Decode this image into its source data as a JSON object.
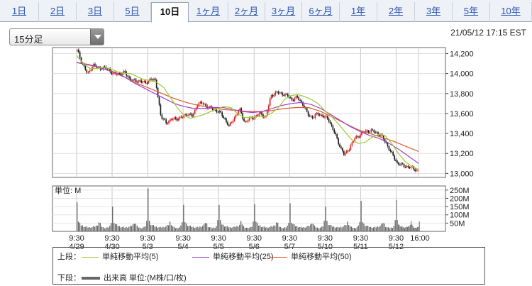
{
  "tabs": [
    {
      "label": "1日",
      "active": false
    },
    {
      "label": "2日",
      "active": false
    },
    {
      "label": "3日",
      "active": false
    },
    {
      "label": "5日",
      "active": false
    },
    {
      "label": "10日",
      "active": true
    },
    {
      "label": "1ヶ月",
      "active": false
    },
    {
      "label": "2ヶ月",
      "active": false
    },
    {
      "label": "3ヶ月",
      "active": false
    },
    {
      "label": "6ヶ月",
      "active": false
    },
    {
      "label": "1年",
      "active": false
    },
    {
      "label": "2年",
      "active": false
    },
    {
      "label": "3年",
      "active": false
    },
    {
      "label": "5年",
      "active": false
    },
    {
      "label": "10年",
      "active": false
    }
  ],
  "interval_select": {
    "value": "15分足"
  },
  "timestamp": "21/05/12 17:15 EST",
  "legend": {
    "upper_label": "上段：",
    "lower_label": "下段：",
    "ma5": "単純移動平均(5)",
    "ma25": "単純移動平均(25)",
    "ma50": "単純移動平均(50)",
    "volume": "出来高 単位:(M株/口/枚)"
  },
  "colors": {
    "up_candle": "#e0201a",
    "down_candle": "#1a1a1a",
    "ma5": "#9acd32",
    "ma25": "#a040d0",
    "ma50": "#e05a2a",
    "volume": "#666666",
    "tab_link": "#2a56b0"
  },
  "chart_data": [
    {
      "type": "candlestick",
      "price_ylim": [
        12960,
        14260
      ],
      "y_ticks": [
        "14,200",
        "14,000",
        "13,800",
        "13,600",
        "13,400",
        "13,200",
        "13,000"
      ],
      "y_tick_values": [
        14200,
        14000,
        13800,
        13600,
        13400,
        13200,
        13000
      ],
      "session_x_labels": [
        "9:30",
        "9:30",
        "9:30",
        "9:30",
        "9:30",
        "9:30",
        "9:30",
        "9:30",
        "9:30",
        "9:30"
      ],
      "session_date_labels": [
        "4/29",
        "4/30",
        "5/3",
        "5/4",
        "5/5",
        "5/6",
        "5/7",
        "5/10",
        "5/11",
        "5/12"
      ],
      "end_x_label": "16:00",
      "close_path": [
        14230,
        14100,
        13990,
        14090,
        14050,
        14060,
        14040,
        13990,
        14000,
        14010,
        13950,
        13920,
        13930,
        13900,
        13950,
        13920,
        13560,
        13510,
        13540,
        13550,
        13560,
        13600,
        13570,
        13700,
        13700,
        13660,
        13640,
        13620,
        13560,
        13470,
        13560,
        13640,
        13510,
        13550,
        13570,
        13600,
        13560,
        13780,
        13810,
        13800,
        13780,
        13740,
        13760,
        13700,
        13590,
        13560,
        13600,
        13570,
        13540,
        13420,
        13290,
        13180,
        13260,
        13350,
        13390,
        13420,
        13430,
        13410,
        13380,
        13300,
        13200,
        13110,
        13080,
        13070,
        13050,
        13030
      ],
      "ma5": [
        14180,
        14100,
        14050,
        14050,
        14060,
        14050,
        14020,
        14000,
        14000,
        13970,
        13940,
        13930,
        13910,
        13860,
        13760,
        13660,
        13580,
        13550,
        13570,
        13590,
        13620,
        13650,
        13670,
        13660,
        13600,
        13560,
        13560,
        13570,
        13570,
        13600,
        13650,
        13740,
        13780,
        13790,
        13770,
        13740,
        13700,
        13630,
        13570,
        13500,
        13420,
        13340,
        13300,
        13310,
        13360,
        13390,
        13380,
        13300,
        13200,
        13120,
        13070,
        13040
      ],
      "ma25": [
        14110,
        14090,
        14070,
        14040,
        14010,
        13960,
        13900,
        13850,
        13800,
        13750,
        13700,
        13670,
        13650,
        13650,
        13660,
        13660,
        13640,
        13620,
        13610,
        13620,
        13650,
        13680,
        13700,
        13710,
        13690,
        13650,
        13590,
        13530,
        13470,
        13420,
        13380,
        13350,
        13300,
        13240,
        13170,
        13100
      ],
      "ma50": [
        14110,
        14090,
        14060,
        14010,
        13960,
        13900,
        13850,
        13800,
        13750,
        13710,
        13680,
        13660,
        13640,
        13630,
        13620,
        13620,
        13630,
        13650,
        13660,
        13660,
        13620,
        13560,
        13500,
        13440,
        13400,
        13360,
        13320,
        13270,
        13220
      ],
      "vol_ylim": [
        0,
        275
      ],
      "vol_ticks": [
        "250M",
        "200M",
        "150M",
        "100M",
        "50M"
      ],
      "vol_tick_values": [
        250,
        200,
        150,
        100,
        50
      ],
      "vol_unit_label": "単位: M",
      "volume_session_profile": [
        175,
        60,
        45,
        38,
        34,
        30,
        28,
        26,
        25,
        24,
        25,
        26,
        28,
        30,
        34,
        40,
        55,
        45,
        30,
        25,
        22,
        20,
        22,
        25,
        32,
        60
      ],
      "volume_session_peaks": [
        175,
        150,
        260,
        160,
        160,
        165,
        170,
        150,
        185,
        190
      ]
    }
  ]
}
